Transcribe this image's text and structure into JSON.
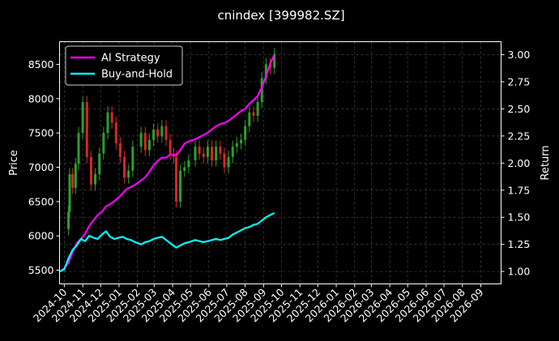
{
  "chart_data": {
    "type": "line",
    "title": "cnindex [399982.SZ]",
    "ylabel": "Price",
    "y2label": "Return",
    "ylim": [
      5300,
      8830
    ],
    "y2lim": [
      0.885,
      3.12
    ],
    "xlim": [
      "2024-09-23",
      "2026-10-05"
    ],
    "grid": true,
    "legend_position": "top-left",
    "price_ticks": [
      5500,
      6000,
      6500,
      7000,
      7500,
      8000,
      8500
    ],
    "return_ticks": [
      1.0,
      1.25,
      1.5,
      1.75,
      2.0,
      2.25,
      2.5,
      2.75,
      3.0
    ],
    "x_ticks": [
      "2024-10",
      "2024-11",
      "2024-12",
      "2025-01",
      "2025-02",
      "2025-03",
      "2025-04",
      "2025-05",
      "2025-06",
      "2025-07",
      "2025-08",
      "2025-09",
      "2025-10",
      "2025-11",
      "2025-12",
      "2026-01",
      "2026-02",
      "2026-03",
      "2026-04",
      "2026-05",
      "2026-06",
      "2026-07",
      "2026-08",
      "2026-09"
    ],
    "candlestick_price": {
      "name": "",
      "up_color": "#2ca02c",
      "down_color": "#d62728",
      "dates": [
        "2024-10-01",
        "2024-10-08",
        "2024-10-10",
        "2024-10-15",
        "2024-10-20",
        "2024-10-25",
        "2024-11-01",
        "2024-11-08",
        "2024-11-15",
        "2024-11-22",
        "2024-11-29",
        "2024-12-06",
        "2024-12-13",
        "2024-12-20",
        "2024-12-27",
        "2025-01-03",
        "2025-01-10",
        "2025-01-17",
        "2025-01-24",
        "2025-02-07",
        "2025-02-14",
        "2025-02-21",
        "2025-02-28",
        "2025-03-07",
        "2025-03-14",
        "2025-03-21",
        "2025-03-28",
        "2025-04-03",
        "2025-04-07",
        "2025-04-14",
        "2025-04-21",
        "2025-04-28",
        "2025-05-09",
        "2025-05-16",
        "2025-05-23",
        "2025-05-30",
        "2025-06-06",
        "2025-06-13",
        "2025-06-20",
        "2025-06-27",
        "2025-07-04",
        "2025-07-11",
        "2025-07-18",
        "2025-07-25",
        "2025-08-01",
        "2025-08-08",
        "2025-08-15",
        "2025-08-22",
        "2025-08-29",
        "2025-09-05",
        "2025-09-12",
        "2025-09-19"
      ],
      "values": [
        6100,
        6350,
        6900,
        6700,
        7050,
        7500,
        7950,
        7150,
        6750,
        6900,
        7200,
        7500,
        7800,
        7650,
        7350,
        7150,
        6850,
        6950,
        7300,
        7500,
        7250,
        7400,
        7550,
        7450,
        7600,
        7400,
        7200,
        7150,
        6500,
        6950,
        7000,
        7100,
        7300,
        7200,
        7150,
        7300,
        7100,
        7300,
        7200,
        7000,
        7150,
        7300,
        7350,
        7400,
        7600,
        7800,
        7750,
        7950,
        8300,
        8500,
        8450,
        8650
      ]
    },
    "series": [
      {
        "name": "AI Strategy",
        "color": "#ff00ff",
        "x": [
          "2024-09-24",
          "2024-10-01",
          "2024-10-08",
          "2024-10-15",
          "2024-10-22",
          "2024-10-29",
          "2024-11-05",
          "2024-11-12",
          "2024-11-19",
          "2024-11-26",
          "2024-12-03",
          "2024-12-10",
          "2024-12-17",
          "2024-12-24",
          "2024-12-31",
          "2025-01-07",
          "2025-01-14",
          "2025-01-21",
          "2025-01-28",
          "2025-02-07",
          "2025-02-14",
          "2025-02-21",
          "2025-02-28",
          "2025-03-07",
          "2025-03-14",
          "2025-03-21",
          "2025-03-28",
          "2025-04-07",
          "2025-04-14",
          "2025-04-21",
          "2025-04-28",
          "2025-05-09",
          "2025-05-16",
          "2025-05-23",
          "2025-05-30",
          "2025-06-06",
          "2025-06-13",
          "2025-06-20",
          "2025-06-27",
          "2025-07-04",
          "2025-07-11",
          "2025-07-18",
          "2025-07-25",
          "2025-08-01",
          "2025-08-08",
          "2025-08-15",
          "2025-08-22",
          "2025-08-29",
          "2025-09-05",
          "2025-09-12",
          "2025-09-19"
        ],
        "values": [
          1.0,
          1.03,
          1.08,
          1.18,
          1.26,
          1.3,
          1.35,
          1.42,
          1.47,
          1.52,
          1.55,
          1.6,
          1.62,
          1.65,
          1.68,
          1.72,
          1.76,
          1.78,
          1.8,
          1.84,
          1.87,
          1.92,
          1.98,
          2.02,
          2.05,
          2.05,
          2.08,
          2.07,
          2.12,
          2.18,
          2.2,
          2.22,
          2.24,
          2.26,
          2.28,
          2.31,
          2.34,
          2.36,
          2.37,
          2.39,
          2.42,
          2.45,
          2.48,
          2.5,
          2.55,
          2.58,
          2.62,
          2.7,
          2.8,
          2.92,
          3.0
        ]
      },
      {
        "name": "Buy-and-Hold",
        "color": "#00ffff",
        "x": [
          "2024-09-24",
          "2024-10-01",
          "2024-10-08",
          "2024-10-15",
          "2024-10-22",
          "2024-10-29",
          "2024-11-05",
          "2024-11-12",
          "2024-11-19",
          "2024-11-26",
          "2024-12-03",
          "2024-12-10",
          "2024-12-17",
          "2024-12-24",
          "2024-12-31",
          "2025-01-07",
          "2025-01-14",
          "2025-01-21",
          "2025-01-28",
          "2025-02-07",
          "2025-02-14",
          "2025-02-21",
          "2025-02-28",
          "2025-03-07",
          "2025-03-14",
          "2025-03-21",
          "2025-03-28",
          "2025-04-07",
          "2025-04-14",
          "2025-04-21",
          "2025-04-28",
          "2025-05-09",
          "2025-05-16",
          "2025-05-23",
          "2025-05-30",
          "2025-06-06",
          "2025-06-13",
          "2025-06-20",
          "2025-06-27",
          "2025-07-04",
          "2025-07-11",
          "2025-07-18",
          "2025-07-25",
          "2025-08-01",
          "2025-08-08",
          "2025-08-15",
          "2025-08-22",
          "2025-08-29",
          "2025-09-05",
          "2025-09-12",
          "2025-09-19"
        ],
        "values": [
          1.0,
          1.02,
          1.12,
          1.2,
          1.24,
          1.3,
          1.28,
          1.33,
          1.31,
          1.3,
          1.34,
          1.37,
          1.32,
          1.3,
          1.31,
          1.32,
          1.3,
          1.29,
          1.27,
          1.25,
          1.27,
          1.28,
          1.3,
          1.31,
          1.32,
          1.29,
          1.26,
          1.22,
          1.24,
          1.26,
          1.27,
          1.29,
          1.28,
          1.27,
          1.28,
          1.29,
          1.3,
          1.29,
          1.3,
          1.31,
          1.34,
          1.36,
          1.38,
          1.4,
          1.41,
          1.43,
          1.44,
          1.47,
          1.5,
          1.52,
          1.54
        ]
      }
    ]
  }
}
